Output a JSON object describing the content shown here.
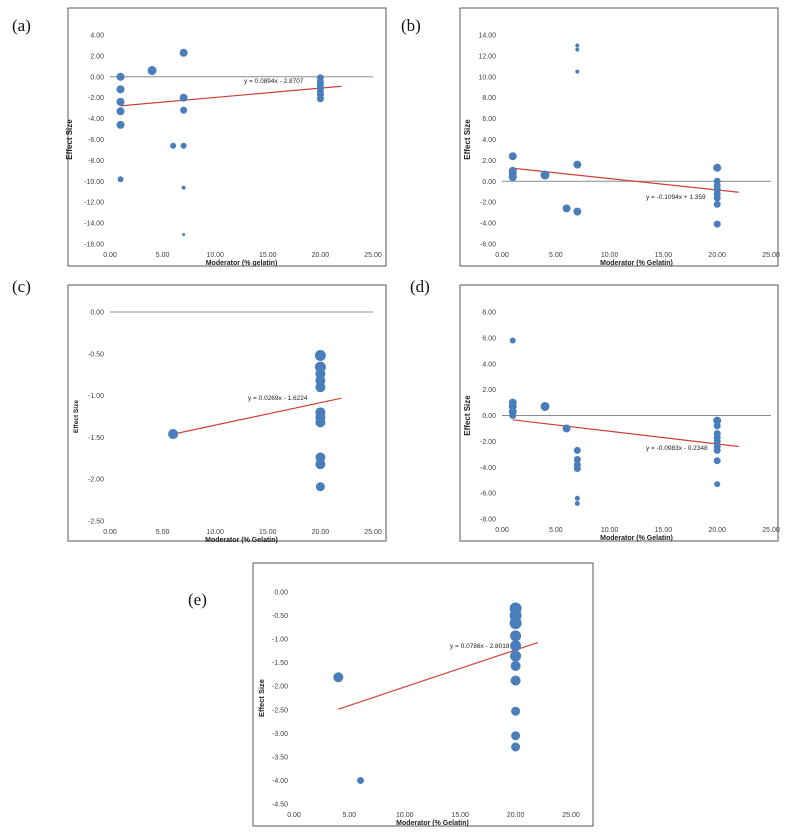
{
  "chart_data": [
    {
      "id": "a",
      "type": "scatter",
      "panel_label": "(a)",
      "xlabel": "Moderator (% gelatin)",
      "ylabel": "Effect Size",
      "xlim": [
        0,
        25
      ],
      "ylim": [
        -16,
        4
      ],
      "x_ticks": [
        0,
        5,
        10,
        15,
        20,
        25
      ],
      "y_ticks": [
        4,
        2,
        0,
        -2,
        -4,
        -6,
        -8,
        -10,
        -12,
        -14,
        -16
      ],
      "tick_decimals": 2,
      "zero_line": true,
      "equation": "y = 0.0894x - 2.8707",
      "trendline": {
        "slope": 0.0894,
        "intercept": -2.8707,
        "x_range": [
          1,
          22
        ]
      },
      "points": [
        {
          "x": 1,
          "y": 0.0,
          "w": 4
        },
        {
          "x": 1,
          "y": -1.2,
          "w": 4
        },
        {
          "x": 1,
          "y": -2.4,
          "w": 4
        },
        {
          "x": 1,
          "y": -3.3,
          "w": 4
        },
        {
          "x": 1,
          "y": -4.6,
          "w": 4
        },
        {
          "x": 1,
          "y": -9.8,
          "w": 3
        },
        {
          "x": 4,
          "y": 0.6,
          "w": 4.5
        },
        {
          "x": 6,
          "y": -6.6,
          "w": 3
        },
        {
          "x": 7,
          "y": 2.3,
          "w": 4
        },
        {
          "x": 7,
          "y": -2.0,
          "w": 4
        },
        {
          "x": 7,
          "y": -3.2,
          "w": 3.5
        },
        {
          "x": 7,
          "y": -6.6,
          "w": 3
        },
        {
          "x": 7,
          "y": -10.6,
          "w": 2
        },
        {
          "x": 7,
          "y": -15.1,
          "w": 1.5
        },
        {
          "x": 20,
          "y": -0.1,
          "w": 3.5
        },
        {
          "x": 20,
          "y": -0.5,
          "w": 3.5
        },
        {
          "x": 20,
          "y": -0.8,
          "w": 3.5
        },
        {
          "x": 20,
          "y": -1.1,
          "w": 3.5
        },
        {
          "x": 20,
          "y": -1.4,
          "w": 3.5
        },
        {
          "x": 20,
          "y": -1.7,
          "w": 3.5
        },
        {
          "x": 20,
          "y": -2.1,
          "w": 3.5
        }
      ]
    },
    {
      "id": "b",
      "type": "scatter",
      "panel_label": "(b)",
      "xlabel": "Moderator (% Gelatin)",
      "ylabel": "Effect Size",
      "xlim": [
        0,
        25
      ],
      "ylim": [
        -6,
        14
      ],
      "x_ticks": [
        0,
        5,
        10,
        15,
        20,
        25
      ],
      "y_ticks": [
        14,
        12,
        10,
        8,
        6,
        4,
        2,
        0,
        -2,
        -4,
        -6
      ],
      "tick_decimals": 2,
      "zero_line": true,
      "equation": "y = -0.1094x + 1.359",
      "trendline": {
        "slope": -0.1094,
        "intercept": 1.359,
        "x_range": [
          1,
          22
        ]
      },
      "points": [
        {
          "x": 1,
          "y": 2.4,
          "w": 4
        },
        {
          "x": 1,
          "y": 1.0,
          "w": 4
        },
        {
          "x": 1,
          "y": 0.7,
          "w": 4
        },
        {
          "x": 1,
          "y": 0.4,
          "w": 4
        },
        {
          "x": 4,
          "y": 0.6,
          "w": 4.5
        },
        {
          "x": 6,
          "y": -2.6,
          "w": 4
        },
        {
          "x": 7,
          "y": 13.0,
          "w": 2
        },
        {
          "x": 7,
          "y": 12.6,
          "w": 2
        },
        {
          "x": 7,
          "y": 10.5,
          "w": 2
        },
        {
          "x": 7,
          "y": 1.6,
          "w": 4
        },
        {
          "x": 7,
          "y": -2.9,
          "w": 4
        },
        {
          "x": 20,
          "y": 1.3,
          "w": 4
        },
        {
          "x": 20,
          "y": 0.0,
          "w": 3.5
        },
        {
          "x": 20,
          "y": -0.4,
          "w": 3.5
        },
        {
          "x": 20,
          "y": -0.8,
          "w": 3.5
        },
        {
          "x": 20,
          "y": -1.2,
          "w": 3.5
        },
        {
          "x": 20,
          "y": -1.6,
          "w": 3.5
        },
        {
          "x": 20,
          "y": -2.2,
          "w": 3.5
        },
        {
          "x": 20,
          "y": -4.1,
          "w": 3.5
        }
      ]
    },
    {
      "id": "c",
      "type": "scatter",
      "panel_label": "(c)",
      "xlabel": "Moderator (% Gelatin)",
      "ylabel": "Effect Size",
      "xlim": [
        0,
        25
      ],
      "ylim": [
        -2.5,
        0
      ],
      "x_ticks": [
        0,
        5,
        10,
        15,
        20,
        25
      ],
      "y_ticks": [
        0,
        -0.5,
        -1,
        -1.5,
        -2,
        -2.5
      ],
      "tick_decimals": 2,
      "zero_line": true,
      "equation": "y = 0.0269x - 1.6224",
      "trendline": {
        "slope": 0.0269,
        "intercept": -1.6224,
        "x_range": [
          6,
          22
        ]
      },
      "points": [
        {
          "x": 6,
          "y": -1.46,
          "w": 5
        },
        {
          "x": 20,
          "y": -0.52,
          "w": 5.5
        },
        {
          "x": 20,
          "y": -0.66,
          "w": 5.5
        },
        {
          "x": 20,
          "y": -0.74,
          "w": 5
        },
        {
          "x": 20,
          "y": -0.82,
          "w": 5
        },
        {
          "x": 20,
          "y": -0.9,
          "w": 5
        },
        {
          "x": 20,
          "y": -1.2,
          "w": 5
        },
        {
          "x": 20,
          "y": -1.26,
          "w": 5
        },
        {
          "x": 20,
          "y": -1.32,
          "w": 5
        },
        {
          "x": 20,
          "y": -1.74,
          "w": 5
        },
        {
          "x": 20,
          "y": -1.82,
          "w": 5
        },
        {
          "x": 20,
          "y": -2.09,
          "w": 4.5
        }
      ]
    },
    {
      "id": "d",
      "type": "scatter",
      "panel_label": "(d)",
      "xlabel": "Moderator (% Gelatin)",
      "ylabel": "Effect Size",
      "xlim": [
        0,
        25
      ],
      "ylim": [
        -8,
        8
      ],
      "x_ticks": [
        0,
        5,
        10,
        15,
        20,
        25
      ],
      "y_ticks": [
        8,
        6,
        4,
        2,
        0,
        -2,
        -4,
        -6,
        -8
      ],
      "tick_decimals": 2,
      "zero_line": true,
      "equation": "y = -0.0983x - 0.2348",
      "trendline": {
        "slope": -0.0983,
        "intercept": -0.2348,
        "x_range": [
          1,
          22
        ]
      },
      "points": [
        {
          "x": 1,
          "y": 5.8,
          "w": 3
        },
        {
          "x": 1,
          "y": 1.0,
          "w": 4
        },
        {
          "x": 1,
          "y": 0.7,
          "w": 4
        },
        {
          "x": 1,
          "y": 0.3,
          "w": 4
        },
        {
          "x": 1,
          "y": 0.0,
          "w": 3.5
        },
        {
          "x": 4,
          "y": 0.7,
          "w": 4.5
        },
        {
          "x": 6,
          "y": -1.0,
          "w": 4
        },
        {
          "x": 7,
          "y": -2.7,
          "w": 3.5
        },
        {
          "x": 7,
          "y": -3.4,
          "w": 3.5
        },
        {
          "x": 7,
          "y": -3.8,
          "w": 3.5
        },
        {
          "x": 7,
          "y": -4.1,
          "w": 3.5
        },
        {
          "x": 7,
          "y": -6.4,
          "w": 2.5
        },
        {
          "x": 7,
          "y": -6.8,
          "w": 2.5
        },
        {
          "x": 20,
          "y": -0.4,
          "w": 4
        },
        {
          "x": 20,
          "y": -0.8,
          "w": 3.5
        },
        {
          "x": 20,
          "y": -1.4,
          "w": 3.5
        },
        {
          "x": 20,
          "y": -1.7,
          "w": 3.5
        },
        {
          "x": 20,
          "y": -2.0,
          "w": 3.5
        },
        {
          "x": 20,
          "y": -2.4,
          "w": 3.5
        },
        {
          "x": 20,
          "y": -2.7,
          "w": 3.5
        },
        {
          "x": 20,
          "y": -3.5,
          "w": 3.5
        },
        {
          "x": 20,
          "y": -5.3,
          "w": 3
        }
      ]
    },
    {
      "id": "e",
      "type": "scatter",
      "panel_label": "(e)",
      "xlabel": "Moderator (% Gelatin)",
      "ylabel": "Effect Size",
      "xlim": [
        0,
        25
      ],
      "ylim": [
        -4.5,
        0
      ],
      "x_ticks": [
        0,
        5,
        10,
        15,
        20,
        25
      ],
      "y_ticks": [
        0,
        -0.5,
        -1,
        -1.5,
        -2,
        -2.5,
        -3,
        -3.5,
        -4,
        -4.5
      ],
      "tick_decimals": 2,
      "zero_line": false,
      "equation": "y = 0.0786x - 2.8018",
      "trendline": {
        "slope": 0.0786,
        "intercept": -2.8018,
        "x_range": [
          4,
          22
        ]
      },
      "points": [
        {
          "x": 4,
          "y": -1.81,
          "w": 5
        },
        {
          "x": 6,
          "y": -4.0,
          "w": 3.5
        },
        {
          "x": 20,
          "y": -0.35,
          "w": 6
        },
        {
          "x": 20,
          "y": -0.5,
          "w": 6
        },
        {
          "x": 20,
          "y": -0.66,
          "w": 6
        },
        {
          "x": 20,
          "y": -0.93,
          "w": 5.5
        },
        {
          "x": 20,
          "y": -1.14,
          "w": 5.5
        },
        {
          "x": 20,
          "y": -1.36,
          "w": 5.5
        },
        {
          "x": 20,
          "y": -1.57,
          "w": 5
        },
        {
          "x": 20,
          "y": -1.88,
          "w": 5
        },
        {
          "x": 20,
          "y": -2.53,
          "w": 4.5
        },
        {
          "x": 20,
          "y": -3.05,
          "w": 4.5
        },
        {
          "x": 20,
          "y": -3.29,
          "w": 4.5
        }
      ]
    }
  ]
}
